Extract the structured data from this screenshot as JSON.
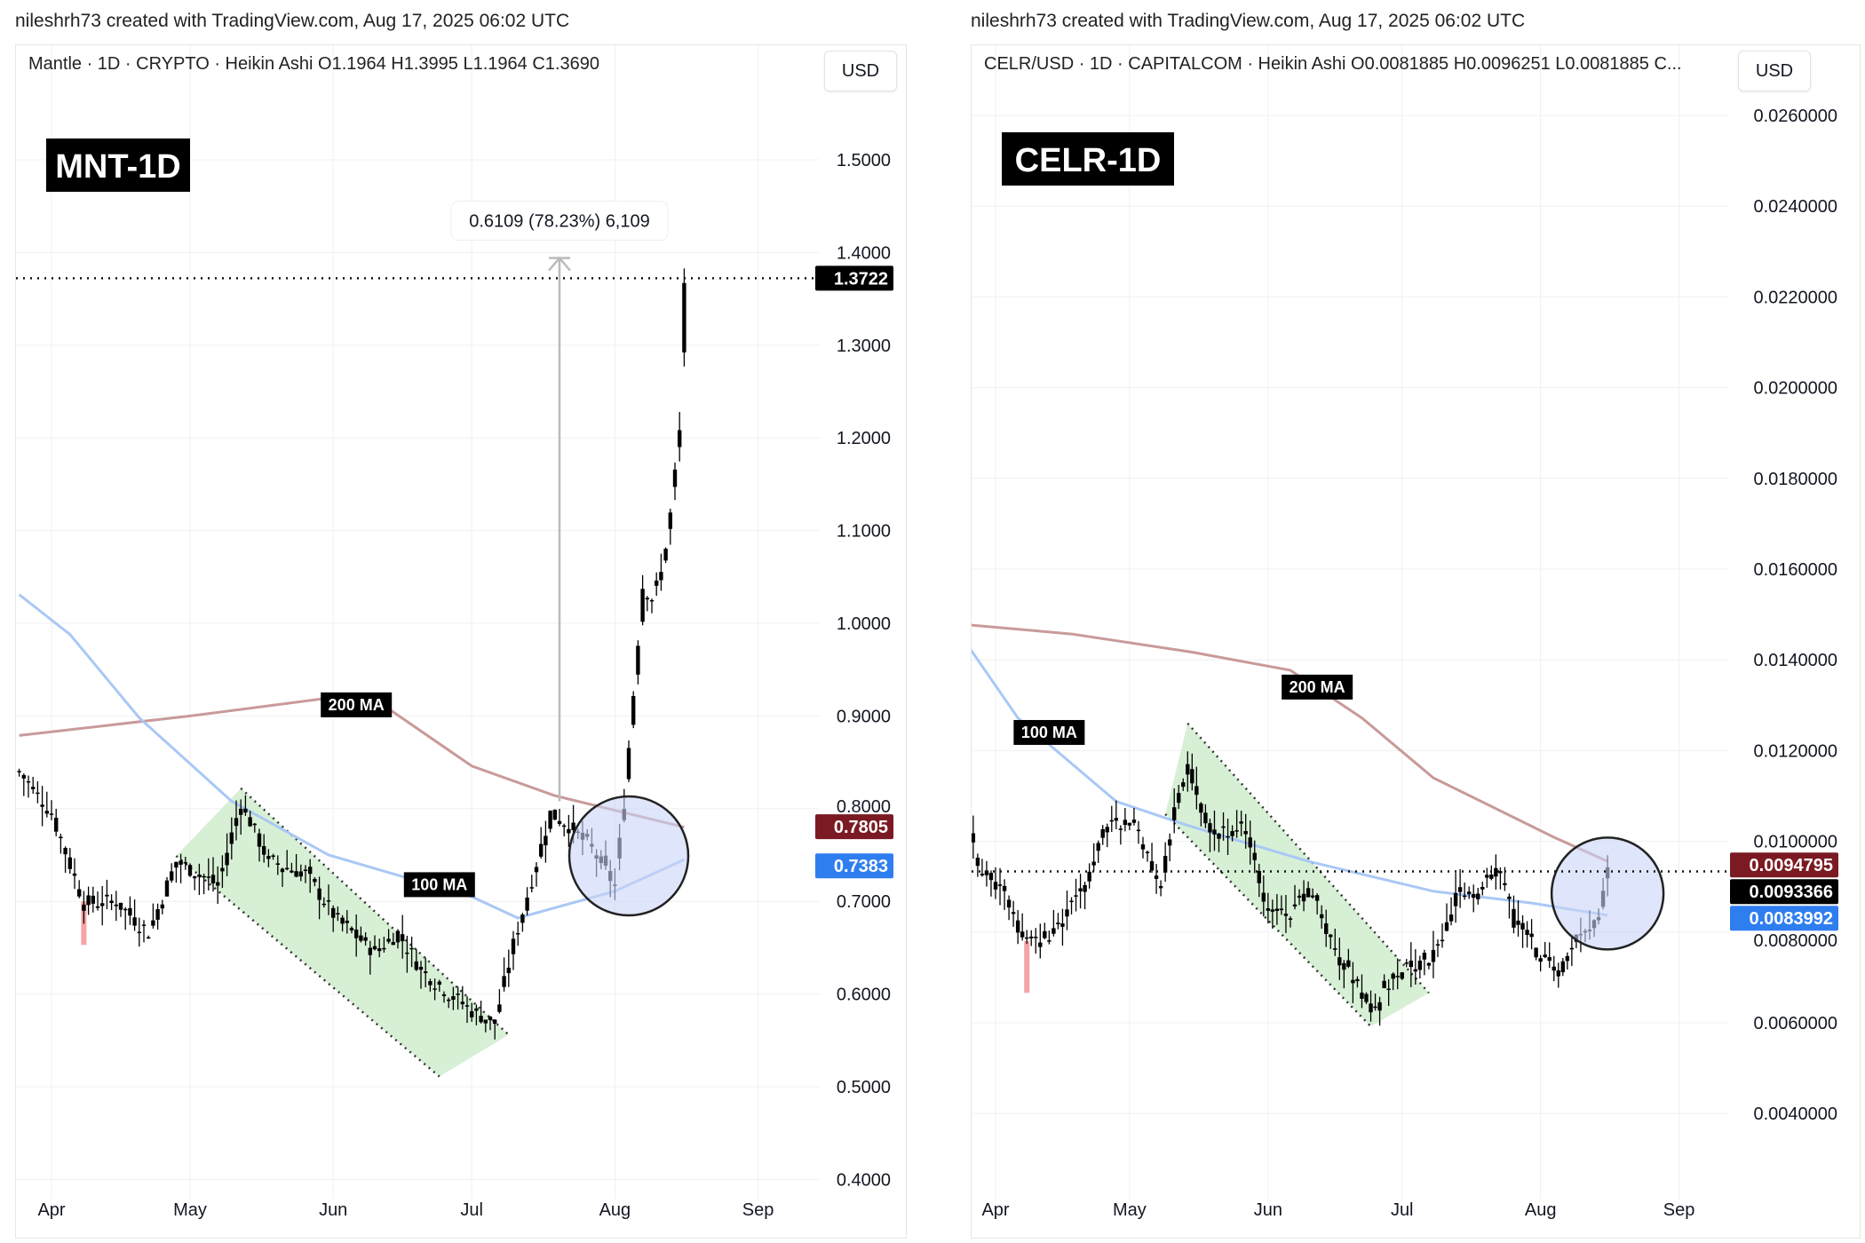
{
  "colors": {
    "candle": "#000000",
    "ma200": "#c99a9a",
    "ma100": "#a9c8f5",
    "channel": "#cdeccb",
    "circle": "#c9d3f7",
    "ma200_tag": "#7b1a22",
    "ma100_tag": "#2f7ef0",
    "price_tag": "#000000",
    "red_candle": "#f4a4a4"
  },
  "chart_data": [
    {
      "type": "candlestick",
      "credit": "nileshrh73 created with TradingView.com, Aug 17, 2025 06:02 UTC",
      "legend": "Mantle · 1D · CRYPTO · Heikin Ashi  O1.1964  H1.3995  L1.1964  C1.3690",
      "currency": "USD",
      "title": "MNT-1D",
      "ylim": [
        0.4,
        1.55
      ],
      "y_ticks": [
        "1.5000",
        "1.4000",
        "1.3000",
        "1.2000",
        "1.1000",
        "1.0000",
        "0.9000",
        "0.8000",
        "0.7000",
        "0.6000",
        "0.5000",
        "0.4000"
      ],
      "x_ticks": [
        {
          "label": "Apr",
          "date": "2025-04-01"
        },
        {
          "label": "May",
          "date": "2025-05-01"
        },
        {
          "label": "Jun",
          "date": "2025-06-01"
        },
        {
          "label": "Jul",
          "date": "2025-07-01"
        },
        {
          "label": "Aug",
          "date": "2025-08-01"
        },
        {
          "label": "Sep",
          "date": "2025-09-01"
        }
      ],
      "price_path": [
        [
          "2025-03-25",
          0.84
        ],
        [
          "2025-04-01",
          0.795
        ],
        [
          "2025-04-08",
          0.698
        ],
        [
          "2025-04-15",
          0.7
        ],
        [
          "2025-04-22",
          0.666
        ],
        [
          "2025-04-28",
          0.743
        ],
        [
          "2025-05-03",
          0.73
        ],
        [
          "2025-05-07",
          0.717
        ],
        [
          "2025-05-12",
          0.808
        ],
        [
          "2025-05-18",
          0.743
        ],
        [
          "2025-05-26",
          0.73
        ],
        [
          "2025-06-02",
          0.679
        ],
        [
          "2025-06-10",
          0.646
        ],
        [
          "2025-06-15",
          0.666
        ],
        [
          "2025-06-20",
          0.627
        ],
        [
          "2025-06-26",
          0.601
        ],
        [
          "2025-07-01",
          0.582
        ],
        [
          "2025-07-06",
          0.569
        ],
        [
          "2025-07-10",
          0.653
        ],
        [
          "2025-07-14",
          0.724
        ],
        [
          "2025-07-18",
          0.795
        ],
        [
          "2025-07-22",
          0.782
        ],
        [
          "2025-07-27",
          0.756
        ],
        [
          "2025-08-01",
          0.717
        ],
        [
          "2025-08-03",
          0.808
        ],
        [
          "2025-08-05",
          0.924
        ],
        [
          "2025-08-07",
          1.04
        ],
        [
          "2025-08-09",
          1.027
        ],
        [
          "2025-08-11",
          1.053
        ],
        [
          "2025-08-13",
          1.117
        ],
        [
          "2025-08-15",
          1.207
        ],
        [
          "2025-08-16",
          1.369
        ]
      ],
      "red_candle": {
        "date": "2025-04-08",
        "low": 0.653,
        "high": 0.7
      },
      "ma200": {
        "label": "200 MA",
        "value": "0.7805",
        "path": [
          [
            "2025-03-25",
            0.879
          ],
          [
            "2025-05-01",
            0.9
          ],
          [
            "2025-06-01",
            0.92
          ],
          [
            "2025-06-10",
            0.918
          ],
          [
            "2025-07-01",
            0.846
          ],
          [
            "2025-07-19",
            0.814
          ],
          [
            "2025-08-16",
            0.78
          ]
        ],
        "label_at": [
          "2025-06-06",
          0.912
        ]
      },
      "ma100": {
        "label": "100 MA",
        "value": "0.7383",
        "path": [
          [
            "2025-03-25",
            1.031
          ],
          [
            "2025-04-05",
            0.988
          ],
          [
            "2025-04-20",
            0.898
          ],
          [
            "2025-05-10",
            0.808
          ],
          [
            "2025-05-31",
            0.75
          ],
          [
            "2025-07-01",
            0.705
          ],
          [
            "2025-07-11",
            0.682
          ],
          [
            "2025-08-01",
            0.711
          ],
          [
            "2025-08-16",
            0.745
          ]
        ],
        "label_at": [
          "2025-06-24",
          0.718
        ]
      },
      "last_price": "1.3722",
      "channel": [
        [
          "2025-04-28",
          0.749
        ],
        [
          "2025-05-12",
          0.822
        ],
        [
          "2025-07-09",
          0.556
        ],
        [
          "2025-06-24",
          0.511
        ]
      ],
      "highlight_circle": {
        "date": "2025-08-04",
        "price": 0.749
      },
      "measure": {
        "label": "0.6109 (78.23%) 6,109",
        "date": "2025-07-20",
        "from": 0.808,
        "to": 1.394
      }
    },
    {
      "type": "candlestick",
      "credit": "nileshrh73 created with TradingView.com, Aug 17, 2025 06:02 UTC",
      "legend": "CELR/USD · 1D · CAPITALCOM · Heikin Ashi  O0.0081885  H0.0096251  L0.0081885  C...",
      "currency": "USD",
      "title": "CELR-1D",
      "ylim": [
        0.003,
        0.0265
      ],
      "y_ticks": [
        "0.0260000",
        "0.0240000",
        "0.0220000",
        "0.0200000",
        "0.0180000",
        "0.0160000",
        "0.0140000",
        "0.0120000",
        "0.0100000",
        "0.0080000",
        "0.0060000",
        "0.0040000"
      ],
      "x_ticks": [
        {
          "label": "Apr",
          "date": "2025-04-01"
        },
        {
          "label": "May",
          "date": "2025-05-01"
        },
        {
          "label": "Jun",
          "date": "2025-06-01"
        },
        {
          "label": "Jul",
          "date": "2025-07-01"
        },
        {
          "label": "Aug",
          "date": "2025-08-01"
        },
        {
          "label": "Sep",
          "date": "2025-09-01"
        }
      ],
      "price_path": [
        [
          "2025-03-25",
          0.01093
        ],
        [
          "2025-03-28",
          0.00956
        ],
        [
          "2025-04-03",
          0.00877
        ],
        [
          "2025-04-08",
          0.00771
        ],
        [
          "2025-04-14",
          0.00798
        ],
        [
          "2025-04-20",
          0.00877
        ],
        [
          "2025-04-26",
          0.01035
        ],
        [
          "2025-05-02",
          0.01035
        ],
        [
          "2025-05-08",
          0.00903
        ],
        [
          "2025-05-12",
          0.01114
        ],
        [
          "2025-05-14",
          0.01167
        ],
        [
          "2025-05-19",
          0.01009
        ],
        [
          "2025-05-26",
          0.01035
        ],
        [
          "2025-06-01",
          0.0085
        ],
        [
          "2025-06-06",
          0.00824
        ],
        [
          "2025-06-10",
          0.00903
        ],
        [
          "2025-06-15",
          0.00771
        ],
        [
          "2025-06-20",
          0.00692
        ],
        [
          "2025-06-24",
          0.0064
        ],
        [
          "2025-07-01",
          0.00719
        ],
        [
          "2025-07-08",
          0.00745
        ],
        [
          "2025-07-13",
          0.00877
        ],
        [
          "2025-07-18",
          0.00877
        ],
        [
          "2025-07-22",
          0.00956
        ],
        [
          "2025-07-26",
          0.00824
        ],
        [
          "2025-08-01",
          0.00745
        ],
        [
          "2025-08-05",
          0.00719
        ],
        [
          "2025-08-10",
          0.00798
        ],
        [
          "2025-08-14",
          0.00811
        ],
        [
          "2025-08-16",
          0.00934
        ]
      ],
      "red_candle": {
        "date": "2025-04-08",
        "low": 0.00666,
        "high": 0.0078
      },
      "ma200": {
        "label": "200 MA",
        "value": "0.0094795",
        "path": [
          [
            "2025-03-25",
            0.01478
          ],
          [
            "2025-04-18",
            0.01457
          ],
          [
            "2025-05-15",
            0.01417
          ],
          [
            "2025-06-06",
            0.01377
          ],
          [
            "2025-06-22",
            0.01272
          ],
          [
            "2025-07-08",
            0.0114
          ],
          [
            "2025-08-04",
            0.01009
          ],
          [
            "2025-08-16",
            0.00956
          ]
        ],
        "label_at": [
          "2025-06-12",
          0.0134
        ]
      },
      "ma100": {
        "label": "100 MA",
        "value": "0.0083992",
        "path": [
          [
            "2025-03-25",
            0.01443
          ],
          [
            "2025-04-06",
            0.01272
          ],
          [
            "2025-04-28",
            0.01088
          ],
          [
            "2025-05-14",
            0.01035
          ],
          [
            "2025-06-10",
            0.00956
          ],
          [
            "2025-07-08",
            0.0089
          ],
          [
            "2025-07-30",
            0.00864
          ],
          [
            "2025-08-16",
            0.00837
          ]
        ],
        "label_at": [
          "2025-04-13",
          0.0124
        ]
      },
      "last_price": "0.0093366",
      "channel": [
        [
          "2025-05-09",
          0.0106
        ],
        [
          "2025-05-14",
          0.0126
        ],
        [
          "2025-07-07",
          0.00666
        ],
        [
          "2025-06-24",
          0.00592
        ]
      ],
      "highlight_circle": {
        "date": "2025-08-16",
        "price": 0.00885
      }
    }
  ]
}
